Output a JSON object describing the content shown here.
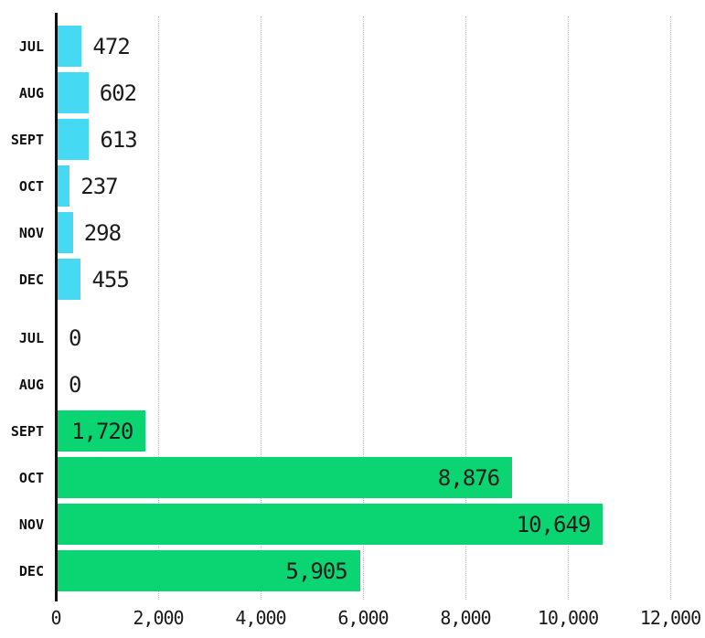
{
  "chart_data": {
    "type": "bar",
    "orientation": "horizontal",
    "title": "",
    "xlabel": "",
    "ylabel": "",
    "xlim": [
      0,
      12000
    ],
    "grid": "vertical-dotted",
    "gridline_color": "#c6c6c6",
    "axis_color": "#111111",
    "categories": [
      "JUL",
      "AUG",
      "SEPT",
      "OCT",
      "NOV",
      "DEC"
    ],
    "series": [
      {
        "name": "cyan-series",
        "color": "#45d9f3",
        "values": [
          472,
          602,
          613,
          237,
          298,
          455
        ],
        "labels": [
          "472",
          "602",
          "613",
          "237",
          "298",
          "455"
        ]
      },
      {
        "name": "green-series",
        "color": "#0bd573",
        "values": [
          0,
          0,
          1720,
          8876,
          10649,
          5905
        ],
        "labels": [
          "0",
          "0",
          "1,720",
          "8,876",
          "10,649",
          "5,905"
        ]
      }
    ],
    "x_ticks": [
      "0",
      "2,000",
      "4,000",
      "6,000",
      "8,000",
      "10,000",
      "12,000"
    ],
    "x_tick_values": [
      0,
      2000,
      4000,
      6000,
      8000,
      10000,
      12000
    ],
    "legend": "none"
  }
}
